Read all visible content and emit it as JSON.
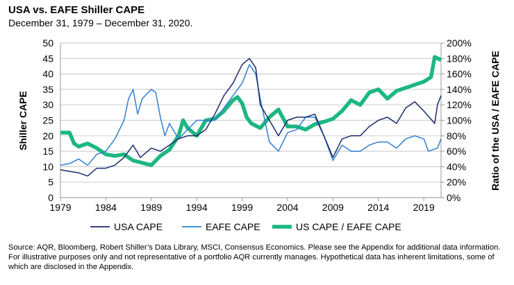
{
  "chart_data": {
    "type": "line",
    "title": "USA vs. EAFE Shiller CAPE",
    "subtitle": "December 31, 1979 – December 31, 2020.",
    "ylabel": "Shiller CAPE",
    "y2label": "Ratio of the USA / EAFE CAPE",
    "xlim": [
      1979,
      2020.9
    ],
    "ylim": [
      0,
      50
    ],
    "y2lim": [
      0,
      200
    ],
    "xticks": [
      "1979",
      "1984",
      "1989",
      "1994",
      "1999",
      "2004",
      "2009",
      "2014",
      "2019"
    ],
    "yticks": [
      "0",
      "5",
      "10",
      "15",
      "20",
      "25",
      "30",
      "35",
      "40",
      "45",
      "50"
    ],
    "y2ticks": [
      "0%",
      "20%",
      "40%",
      "60%",
      "80%",
      "100%",
      "120%",
      "140%",
      "160%",
      "180%",
      "200%"
    ],
    "grid": true,
    "legend": "bottom",
    "series": [
      {
        "name": "USA CAPE",
        "axis": "left",
        "color": "#1a2a6c",
        "x": [
          1979,
          1980,
          1981,
          1982,
          1983,
          1984,
          1985,
          1986,
          1987,
          1987.8,
          1988,
          1989,
          1990,
          1991,
          1992,
          1993,
          1994,
          1995,
          1996,
          1997,
          1998,
          1998.5,
          1999,
          1999.8,
          2000.5,
          2001,
          2002,
          2003,
          2004,
          2005,
          2006,
          2007,
          2008,
          2009,
          2010,
          2011,
          2012,
          2013,
          2014,
          2015,
          2016,
          2017,
          2018,
          2019,
          2020.2,
          2020.5,
          2020.9
        ],
        "values": [
          9,
          8.5,
          8,
          7,
          9.5,
          9.5,
          10.5,
          13,
          17,
          13,
          13.5,
          16,
          15,
          17,
          19,
          20,
          20,
          22,
          27,
          33,
          37,
          40,
          43,
          45,
          42,
          30,
          25,
          20,
          25,
          26,
          26,
          27,
          20,
          13,
          19,
          20,
          20,
          23,
          25,
          26,
          24,
          29,
          31,
          28,
          24,
          30,
          33
        ]
      },
      {
        "name": "EAFE CAPE",
        "axis": "left",
        "color": "#2f7fd0",
        "x": [
          1979,
          1980,
          1981,
          1982,
          1983,
          1984,
          1985,
          1986,
          1986.5,
          1987,
          1987.5,
          1988,
          1989,
          1989.5,
          1990,
          1990.5,
          1991,
          1992,
          1993,
          1994,
          1995,
          1996,
          1997,
          1998,
          1999,
          1999.8,
          2000.5,
          2001,
          2002,
          2003,
          2004,
          2005,
          2006,
          2007,
          2008,
          2009,
          2010,
          2011,
          2012,
          2013,
          2014,
          2015,
          2016,
          2017,
          2018,
          2019,
          2019.5,
          2020.5,
          2020.9
        ],
        "values": [
          10.5,
          11,
          12.5,
          10.5,
          14,
          15,
          19,
          25,
          32,
          35,
          27,
          32,
          35,
          34,
          26,
          20,
          24,
          19,
          22,
          25,
          25,
          25,
          29,
          33,
          37,
          43,
          40,
          32,
          18,
          15,
          21,
          22,
          26,
          26,
          20,
          12,
          17,
          15,
          15,
          17,
          18,
          18,
          16,
          19,
          20,
          19,
          15,
          16,
          19
        ]
      },
      {
        "name": "US CAPE / EAFE CAPE",
        "axis": "right",
        "color": "#1db783",
        "x": [
          1979,
          1980,
          1980.5,
          1981,
          1982,
          1983,
          1984,
          1985,
          1986,
          1987,
          1988,
          1989,
          1990,
          1991,
          1992,
          1992.5,
          1993,
          1994,
          1995,
          1996,
          1997,
          1998,
          1998.5,
          1999,
          1999.5,
          2000,
          2001,
          2002,
          2003,
          2004,
          2005,
          2006,
          2007,
          2008,
          2009,
          2010,
          2011,
          2012,
          2013,
          2014,
          2015,
          2016,
          2017,
          2018,
          2019,
          2019.8,
          2020.2,
          2020.9
        ],
        "values": [
          84,
          84,
          70,
          66,
          70,
          64,
          56,
          54,
          56,
          48,
          45,
          42,
          54,
          62,
          80,
          100,
          90,
          80,
          100,
          102,
          112,
          126,
          130,
          122,
          104,
          96,
          90,
          104,
          114,
          92,
          92,
          88,
          95,
          98,
          102,
          112,
          126,
          120,
          136,
          140,
          128,
          138,
          142,
          146,
          150,
          156,
          182,
          178
        ]
      }
    ]
  },
  "source": "Source: AQR, Bloomberg, Robert Shiller’s Data Library, MSCI, Consensus Economics. Please see the Appendix for additional data information. For illustrative purposes only and not representative of a portfolio AQR currently manages. Hypothetical data has inherent limitations, some of which are disclosed in the Appendix."
}
